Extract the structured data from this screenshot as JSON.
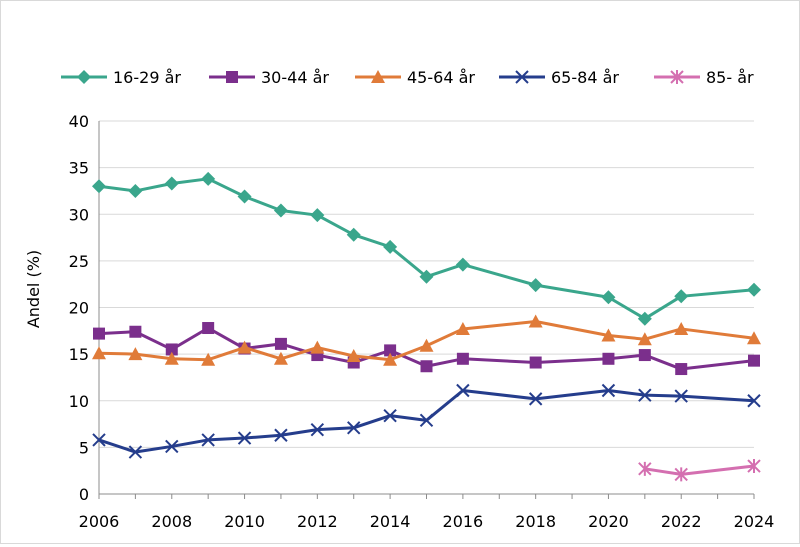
{
  "chart_data": {
    "type": "line",
    "title": "",
    "xlabel": "",
    "ylabel": "Andel (%)",
    "xlim": [
      2006,
      2024
    ],
    "ylim": [
      0,
      40
    ],
    "yticks": [
      "0",
      "5",
      "10",
      "15",
      "20",
      "25",
      "30",
      "35",
      "40"
    ],
    "xticks": [
      "2006",
      "2008",
      "2010",
      "2012",
      "2014",
      "2016",
      "2018",
      "2020",
      "2022",
      "2024"
    ],
    "grid": "horizontal",
    "legend_position": "top",
    "series": [
      {
        "name": "16-29 år",
        "color": "#3aa68c",
        "marker": "diamond",
        "points": [
          [
            2006,
            33.0
          ],
          [
            2007,
            32.5
          ],
          [
            2008,
            33.3
          ],
          [
            2009,
            33.8
          ],
          [
            2010,
            31.9
          ],
          [
            2011,
            30.4
          ],
          [
            2012,
            29.9
          ],
          [
            2013,
            27.8
          ],
          [
            2014,
            26.5
          ],
          [
            2015,
            23.3
          ],
          [
            2016,
            24.6
          ],
          [
            2018,
            22.4
          ],
          [
            2020,
            21.1
          ],
          [
            2021,
            18.8
          ],
          [
            2022,
            21.2
          ],
          [
            2024,
            21.9
          ]
        ]
      },
      {
        "name": "30-44 år",
        "color": "#7b2f8c",
        "marker": "square",
        "points": [
          [
            2006,
            17.2
          ],
          [
            2007,
            17.4
          ],
          [
            2008,
            15.5
          ],
          [
            2009,
            17.8
          ],
          [
            2010,
            15.6
          ],
          [
            2011,
            16.1
          ],
          [
            2012,
            14.9
          ],
          [
            2013,
            14.1
          ],
          [
            2014,
            15.4
          ],
          [
            2015,
            13.7
          ],
          [
            2016,
            14.5
          ],
          [
            2018,
            14.1
          ],
          [
            2020,
            14.5
          ],
          [
            2021,
            14.9
          ],
          [
            2022,
            13.4
          ],
          [
            2024,
            14.3
          ]
        ]
      },
      {
        "name": "45-64 år",
        "color": "#e07b39",
        "marker": "triangle",
        "points": [
          [
            2006,
            15.1
          ],
          [
            2007,
            15.0
          ],
          [
            2008,
            14.5
          ],
          [
            2009,
            14.4
          ],
          [
            2010,
            15.7
          ],
          [
            2011,
            14.5
          ],
          [
            2012,
            15.7
          ],
          [
            2013,
            14.8
          ],
          [
            2014,
            14.4
          ],
          [
            2015,
            15.9
          ],
          [
            2016,
            17.7
          ],
          [
            2018,
            18.5
          ],
          [
            2020,
            17.0
          ],
          [
            2021,
            16.6
          ],
          [
            2022,
            17.7
          ],
          [
            2024,
            16.7
          ]
        ]
      },
      {
        "name": "65-84 år",
        "color": "#253d8c",
        "marker": "x",
        "points": [
          [
            2006,
            5.8
          ],
          [
            2007,
            4.5
          ],
          [
            2008,
            5.1
          ],
          [
            2009,
            5.8
          ],
          [
            2010,
            6.0
          ],
          [
            2011,
            6.3
          ],
          [
            2012,
            6.9
          ],
          [
            2013,
            7.1
          ],
          [
            2014,
            8.4
          ],
          [
            2015,
            7.9
          ],
          [
            2016,
            11.1
          ],
          [
            2018,
            10.2
          ],
          [
            2020,
            11.1
          ],
          [
            2021,
            10.6
          ],
          [
            2022,
            10.5
          ],
          [
            2024,
            10.0
          ]
        ]
      },
      {
        "name": "85- år",
        "color": "#d46fb0",
        "marker": "star",
        "points": [
          [
            2021,
            2.7
          ],
          [
            2022,
            2.1
          ],
          [
            2024,
            3.0
          ]
        ]
      }
    ]
  }
}
